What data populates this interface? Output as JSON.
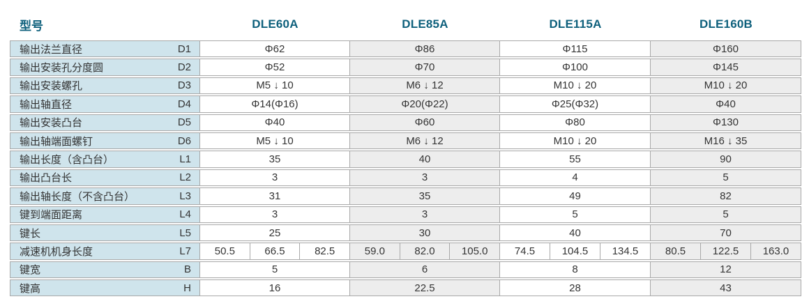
{
  "header": {
    "row_label": "型号",
    "models": [
      "DLE60A",
      "DLE85A",
      "DLE115A",
      "DLE160B"
    ],
    "accent_color": "#0e607c"
  },
  "table": {
    "colors": {
      "label_bg": "#cfe4ec",
      "col_bg_white": "#ffffff",
      "col_bg_gray": "#ededed",
      "border": "#a8a8a8",
      "text": "#333333"
    },
    "rows": [
      {
        "label": "输出法兰直径",
        "code": "D1",
        "values": [
          "Φ62",
          "Φ86",
          "Φ115",
          "Φ160"
        ]
      },
      {
        "label": "输出安装孔分度圆",
        "code": "D2",
        "values": [
          "Φ52",
          "Φ70",
          "Φ100",
          "Φ145"
        ]
      },
      {
        "label": "输出安装螺孔",
        "code": "D3",
        "values": [
          "M5 ↓ 10",
          "M6 ↓ 12",
          "M10 ↓ 20",
          "M10 ↓ 20"
        ]
      },
      {
        "label": "输出轴直径",
        "code": "D4",
        "values": [
          "Φ14(Φ16)",
          "Φ20(Φ22)",
          "Φ25(Φ32)",
          "Φ40"
        ]
      },
      {
        "label": "输出安装凸台",
        "code": "D5",
        "values": [
          "Φ40",
          "Φ60",
          "Φ80",
          "Φ130"
        ]
      },
      {
        "label": "输出轴端面螺钉",
        "code": "D6",
        "values": [
          "M5 ↓ 10",
          "M6 ↓ 12",
          "M10 ↓ 20",
          "M16 ↓ 35"
        ]
      },
      {
        "label": "输出长度（含凸台）",
        "code": "L1",
        "values": [
          "35",
          "40",
          "55",
          "90"
        ]
      },
      {
        "label": "输出凸台长",
        "code": "L2",
        "values": [
          "3",
          "3",
          "4",
          "5"
        ]
      },
      {
        "label": "输出轴长度（不含凸台）",
        "code": "L3",
        "values": [
          "31",
          "35",
          "49",
          "82"
        ]
      },
      {
        "label": "键到端面距离",
        "code": "L4",
        "values": [
          "3",
          "3",
          "5",
          "5"
        ]
      },
      {
        "label": "键长",
        "code": "L5",
        "values": [
          "25",
          "30",
          "40",
          "70"
        ]
      },
      {
        "label": "减速机机身长度",
        "code": "L7",
        "values": [
          [
            "50.5",
            "66.5",
            "82.5"
          ],
          [
            "59.0",
            "82.0",
            "105.0"
          ],
          [
            "74.5",
            "104.5",
            "134.5"
          ],
          [
            "80.5",
            "122.5",
            "163.0"
          ]
        ]
      },
      {
        "label": "键宽",
        "code": "B",
        "values": [
          "5",
          "6",
          "8",
          "12"
        ]
      },
      {
        "label": "键高",
        "code": "H",
        "values": [
          "16",
          "22.5",
          "28",
          "43"
        ]
      }
    ]
  }
}
